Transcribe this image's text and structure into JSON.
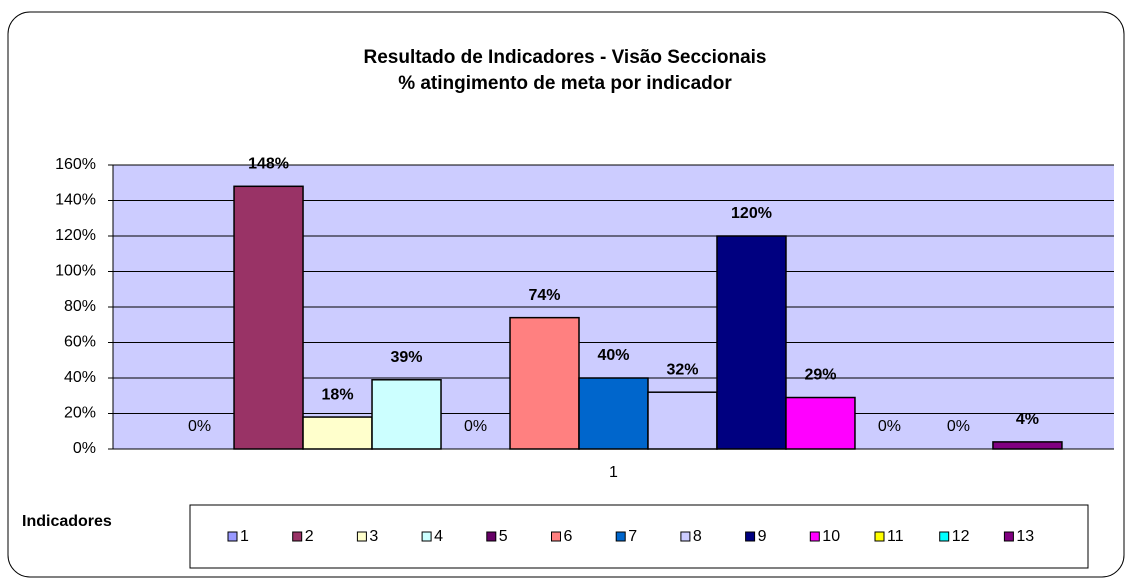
{
  "chart_data": {
    "type": "bar",
    "title": "Resultado de Indicadores - Visão Seccionais",
    "subtitle": "% atingimento de meta por indicador",
    "categories": [
      "1"
    ],
    "legend_title": "Indicadores",
    "series": [
      {
        "name": "1",
        "color": "#9999FF",
        "values": [
          0
        ],
        "value_labels": [
          "0%"
        ]
      },
      {
        "name": "2",
        "color": "#993366",
        "values": [
          148
        ],
        "value_labels": [
          "148%"
        ]
      },
      {
        "name": "3",
        "color": "#FFFFCC",
        "values": [
          18
        ],
        "value_labels": [
          "18%"
        ]
      },
      {
        "name": "4",
        "color": "#CCFFFF",
        "values": [
          39
        ],
        "value_labels": [
          "39%"
        ]
      },
      {
        "name": "5",
        "color": "#660066",
        "values": [
          0
        ],
        "value_labels": [
          "0%"
        ]
      },
      {
        "name": "6",
        "color": "#FF8080",
        "values": [
          74
        ],
        "value_labels": [
          "74%"
        ]
      },
      {
        "name": "7",
        "color": "#0066CC",
        "values": [
          40
        ],
        "value_labels": [
          "40%"
        ]
      },
      {
        "name": "8",
        "color": "#CCCCFF",
        "values": [
          32
        ],
        "value_labels": [
          "32%"
        ]
      },
      {
        "name": "9",
        "color": "#000080",
        "values": [
          120
        ],
        "value_labels": [
          "120%"
        ]
      },
      {
        "name": "10",
        "color": "#FF00FF",
        "values": [
          29
        ],
        "value_labels": [
          "29%"
        ]
      },
      {
        "name": "11",
        "color": "#FFFF00",
        "values": [
          0
        ],
        "value_labels": [
          "0%"
        ]
      },
      {
        "name": "12",
        "color": "#00FFFF",
        "values": [
          0
        ],
        "value_labels": [
          "0%"
        ]
      },
      {
        "name": "13",
        "color": "#800080",
        "values": [
          4
        ],
        "value_labels": [
          "4%"
        ]
      }
    ],
    "ylim": [
      0,
      160
    ],
    "yticks": [
      {
        "value": 0,
        "label": "0%"
      },
      {
        "value": 20,
        "label": "20%"
      },
      {
        "value": 40,
        "label": "40%"
      },
      {
        "value": 60,
        "label": "60%"
      },
      {
        "value": 80,
        "label": "80%"
      },
      {
        "value": 100,
        "label": "100%"
      },
      {
        "value": 120,
        "label": "120%"
      },
      {
        "value": 140,
        "label": "140%"
      },
      {
        "value": 160,
        "label": "160%"
      }
    ],
    "grid": true,
    "plot_background": "#CCCCFF",
    "legend_position": "bottom"
  }
}
